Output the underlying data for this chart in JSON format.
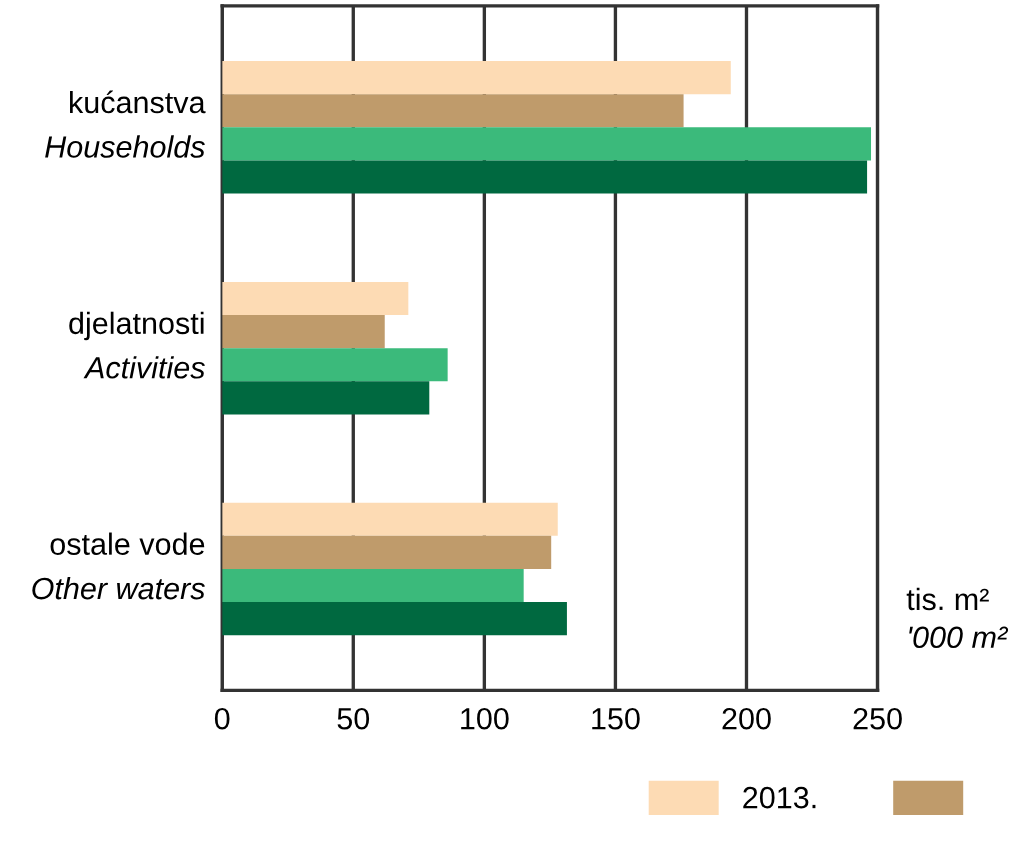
{
  "chart_data": {
    "type": "bar",
    "orientation": "horizontal",
    "categories": [
      "kućanstva\nHouseholds",
      "djelatnosti\nActivities",
      "ostale vode\nOther waters"
    ],
    "series": [
      {
        "name": "2013.",
        "color": "#fddbb4",
        "values": [
          194,
          71,
          128
        ]
      },
      {
        "color": "#bf9b6b",
        "values": [
          176,
          62,
          125.5
        ]
      },
      {
        "color": "#3bba7b",
        "values": [
          247.5,
          86,
          115
        ]
      },
      {
        "color": "#006940",
        "values": [
          246,
          79,
          131.5
        ]
      }
    ],
    "xlabel": "tis. m²\n'000 m²",
    "xlim": [
      0,
      250
    ],
    "xticks": [
      0,
      50,
      100,
      150,
      200,
      250
    ],
    "grid": "x",
    "legend": "bottom right"
  }
}
